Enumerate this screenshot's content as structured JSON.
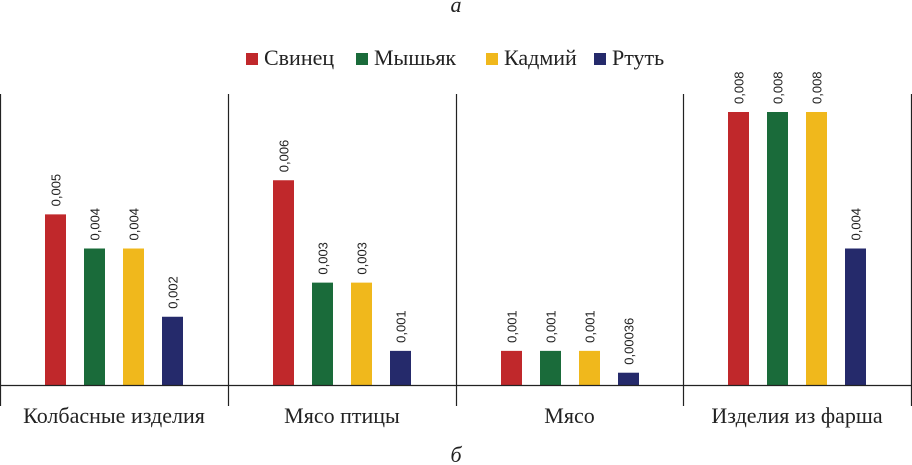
{
  "caption_top": "а",
  "caption_bottom": "б",
  "chart_data": {
    "type": "bar",
    "categories": [
      "Колбасные изделия",
      "Мясо птицы",
      "Мясо",
      "Изделия из фарша"
    ],
    "series": [
      {
        "name": "Свинец",
        "color": "#c0282b",
        "values": [
          0.005,
          0.006,
          0.001,
          0.008
        ],
        "labels": [
          "0,005",
          "0,006",
          "0,001",
          "0,008"
        ]
      },
      {
        "name": "Мышьяк",
        "color": "#1a6b3a",
        "values": [
          0.004,
          0.003,
          0.001,
          0.008
        ],
        "labels": [
          "0,004",
          "0,003",
          "0,001",
          "0,008"
        ]
      },
      {
        "name": "Кадмий",
        "color": "#f0b81c",
        "values": [
          0.004,
          0.003,
          0.001,
          0.008
        ],
        "labels": [
          "0,004",
          "0,003",
          "0,001",
          "0,008"
        ]
      },
      {
        "name": "Ртуть",
        "color": "#252a6b",
        "values": [
          0.002,
          0.001,
          0.00036,
          0.004
        ],
        "labels": [
          "0,002",
          "0,001",
          "0,00036",
          "0,004"
        ]
      }
    ],
    "ylim": [
      0,
      0.008
    ],
    "legend_position": "top-center",
    "grid": false
  }
}
